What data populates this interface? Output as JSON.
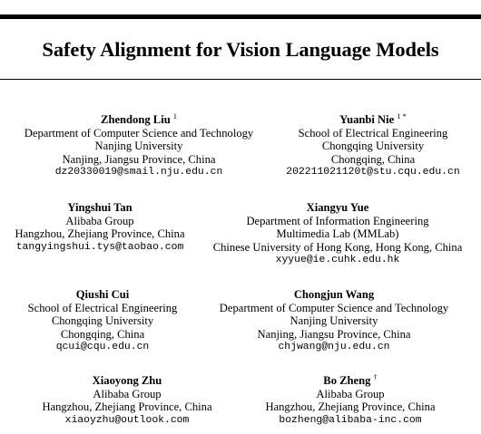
{
  "title": "Safety Alignment for Vision Language Models",
  "authors": [
    {
      "name": "Zhendong Liu",
      "mark": "1",
      "lines": [
        "Department of Computer Science and Technology",
        "Nanjing University",
        "Nanjing, Jiangsu Province, China"
      ],
      "email": "dz20330019@smail.nju.edu.cn"
    },
    {
      "name": "Yuanbi Nie",
      "mark": "1 *",
      "lines": [
        "School of Electrical Engineering",
        "Chongqing University",
        "Chongqing, China"
      ],
      "email": "202211021120t@stu.cqu.edu.cn"
    },
    {
      "name": "Yingshui Tan",
      "mark": "",
      "lines": [
        "Alibaba Group",
        "Hangzhou, Zhejiang Province, China"
      ],
      "email": "tangyingshui.tys@taobao.com"
    },
    {
      "name": "Xiangyu Yue",
      "mark": "",
      "lines": [
        "Department of Information Engineering",
        "Multimedia Lab (MMLab)",
        "Chinese University of Hong Kong, Hong Kong, China"
      ],
      "email": "xyyue@ie.cuhk.edu.hk"
    },
    {
      "name": "Qiushi Cui",
      "mark": "",
      "lines": [
        "School of Electrical Engineering",
        "Chongqing University",
        "Chongqing, China"
      ],
      "email": "qcui@cqu.edu.cn"
    },
    {
      "name": "Chongjun Wang",
      "mark": "",
      "lines": [
        "Department of Computer Science and Technology",
        "Nanjing University",
        "Nanjing, Jiangsu Province, China"
      ],
      "email": "chjwang@nju.edu.cn"
    },
    {
      "name": "Xiaoyong Zhu",
      "mark": "",
      "lines": [
        "Alibaba Group",
        "Hangzhou, Zhejiang Province, China"
      ],
      "email": "xiaoyzhu@outlook.com"
    },
    {
      "name": "Bo Zheng",
      "mark": "†",
      "lines": [
        "Alibaba Group",
        "Hangzhou, Zhejiang Province, China"
      ],
      "email": "bozheng@alibaba-inc.com"
    }
  ]
}
